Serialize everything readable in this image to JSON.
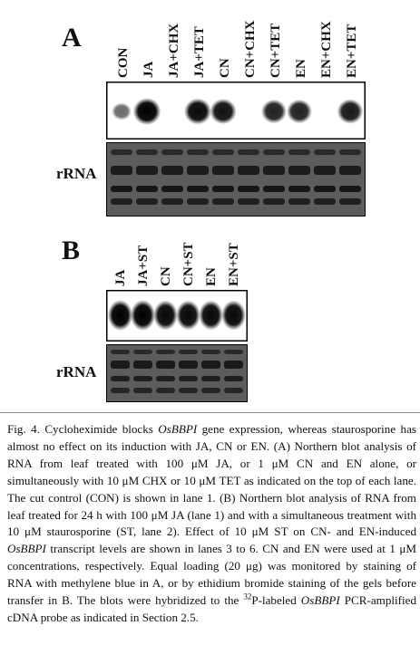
{
  "panel_a": {
    "letter": "A",
    "lanes": [
      "CON",
      "JA",
      "JA+CHX",
      "JA+TET",
      "CN",
      "CN+CHX",
      "CN+TET",
      "EN",
      "EN+CHX",
      "EN+TET"
    ],
    "band_intensity": [
      0.35,
      1.0,
      0.05,
      0.95,
      0.9,
      0.05,
      0.8,
      0.8,
      0.05,
      0.85
    ],
    "rrna_label": "rRNA"
  },
  "panel_b": {
    "letter": "B",
    "lanes": [
      "JA",
      "JA+ST",
      "CN",
      "CN+ST",
      "EN",
      "EN+ST"
    ],
    "band_intensity": [
      1.0,
      1.0,
      0.95,
      0.95,
      0.95,
      0.95
    ],
    "rrna_label": "rRNA"
  },
  "caption": {
    "p01": "Fig. 4. Cycloheximide blocks ",
    "p02": "OsBBPI",
    "p03": " gene expression, whereas stauro­sporine has almost no effect on its induction with JA, CN or EN. (A) North­ern blot analysis of RNA from leaf treated with 100 μM JA, or 1 μM CN and EN alone, or simultaneously with 10 μM CHX or 10 μM TET as indicated on the top of each lane. The cut control (CON) is shown in lane 1. (B) Northern blot analysis of RNA from leaf treated for 24 h with 100 μM JA (lane 1) and with a simultaneous treatment with 10 μM staur­osporine (ST, lane 2). Effect of 10 μM ST on CN- and EN-induced ",
    "p04": "OsBBPI",
    "p05": " transcript levels are shown in lanes 3 to 6. CN and EN were used at 1 μM concentrations, respectively. Equal loading (20 μg) was monitored by staining of RNA with methylene blue in A, or by ethidium bromide staining of the gels before transfer in B. The blots were hybridized to the ",
    "p06": "32",
    "p07": "P-labeled ",
    "p08": "OsBBPI",
    "p09": " PCR-amplified cDNA probe as indicated in Section 2.5."
  }
}
